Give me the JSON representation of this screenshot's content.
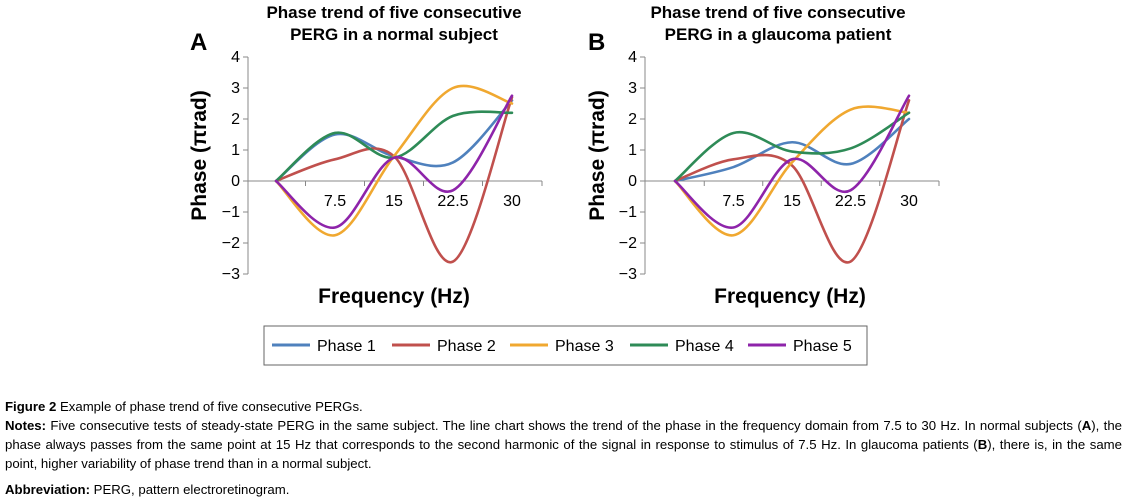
{
  "chart_data": [
    {
      "panel": "A",
      "type": "line",
      "title": "Phase trend of five consecutive PERG in a normal subject",
      "title_lines": [
        "Phase trend of five consecutive",
        "PERG in a normal subject"
      ],
      "xlabel": "Frequency (Hz)",
      "ylabel": "Phase (πrad)",
      "x": [
        0,
        7.5,
        15,
        22.5,
        30
      ],
      "x_tick_labels": [
        "7.5",
        "15",
        "22.5",
        "30"
      ],
      "ylim": [
        -3,
        4
      ],
      "y_ticks": [
        "−3",
        "−2",
        "−1",
        "0",
        "1",
        "2",
        "3",
        "4"
      ],
      "series": [
        {
          "name": "Phase 1",
          "color": "#4f81bd",
          "values": [
            0,
            1.5,
            0.8,
            0.6,
            2.6
          ]
        },
        {
          "name": "Phase 2",
          "color": "#c0504d",
          "values": [
            0,
            0.7,
            0.8,
            -2.6,
            2.7
          ]
        },
        {
          "name": "Phase 3",
          "color": "#f0a830",
          "values": [
            0,
            -1.75,
            0.8,
            3.0,
            2.5
          ]
        },
        {
          "name": "Phase 4",
          "color": "#2e8b57",
          "values": [
            0,
            1.55,
            0.75,
            2.1,
            2.2
          ]
        },
        {
          "name": "Phase 5",
          "color": "#8e24aa",
          "values": [
            0,
            -1.5,
            0.75,
            -0.3,
            2.75
          ]
        }
      ]
    },
    {
      "panel": "B",
      "type": "line",
      "title": "Phase trend of five consecutive PERG in a glaucoma patient",
      "title_lines": [
        "Phase trend of five consecutive",
        "PERG in a glaucoma patient"
      ],
      "xlabel": "Frequency (Hz)",
      "ylabel": "Phase (πrad)",
      "x": [
        0,
        7.5,
        15,
        22.5,
        30
      ],
      "x_tick_labels": [
        "7.5",
        "15",
        "22.5",
        "30"
      ],
      "ylim": [
        -3,
        4
      ],
      "y_ticks": [
        "−3",
        "−2",
        "−1",
        "0",
        "1",
        "2",
        "3",
        "4"
      ],
      "series": [
        {
          "name": "Phase 1",
          "color": "#4f81bd",
          "values": [
            0,
            0.45,
            1.25,
            0.55,
            2.0
          ]
        },
        {
          "name": "Phase 2",
          "color": "#c0504d",
          "values": [
            0,
            0.7,
            0.5,
            -2.6,
            2.6
          ]
        },
        {
          "name": "Phase 3",
          "color": "#f0a830",
          "values": [
            0,
            -1.75,
            0.6,
            2.3,
            2.2
          ]
        },
        {
          "name": "Phase 4",
          "color": "#2e8b57",
          "values": [
            0,
            1.55,
            0.95,
            1.05,
            2.2
          ]
        },
        {
          "name": "Phase 5",
          "color": "#8e24aa",
          "values": [
            0,
            -1.5,
            0.7,
            -0.3,
            2.75
          ]
        }
      ]
    }
  ],
  "legend": [
    "Phase 1",
    "Phase 2",
    "Phase 3",
    "Phase 4",
    "Phase 5"
  ],
  "caption": {
    "fig_label": "Figure 2",
    "fig_text": "Example of phase trend of five consecutive PERGs.",
    "notes_label": "Notes:",
    "notes_text_1": "Five consecutive tests of steady-state PERG in the same subject. The line chart shows the trend of the phase in the frequency domain from 7.5 to 30 Hz. In normal subjects (",
    "notes_A": "A",
    "notes_text_2": "), the phase always passes from the same point at 15 Hz that corresponds to the second harmonic of the signal in response to stimulus of 7.5 Hz. In glaucoma patients (",
    "notes_B": "B",
    "notes_text_3": "), there is, in the same point, higher variability of phase trend than in a normal subject.",
    "abbr_label": "Abbreviation:",
    "abbr_text": "PERG, pattern electroretinogram."
  }
}
